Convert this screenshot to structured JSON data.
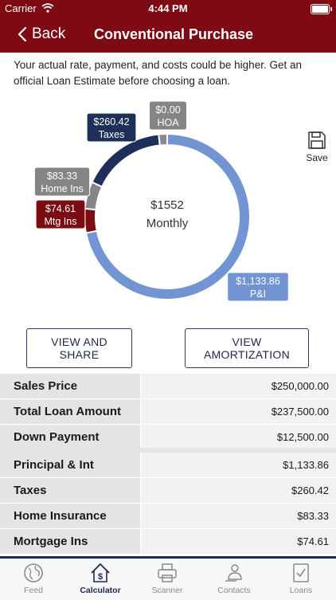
{
  "status_bar": {
    "carrier": "Carrier",
    "time": "4:44 PM"
  },
  "nav": {
    "back_label": "Back",
    "title": "Conventional Purchase"
  },
  "disclaimer": "Your actual rate, payment, and costs could be higher. Get an official Loan Estimate before choosing a loan.",
  "chart_data": {
    "type": "pie",
    "variant": "donut",
    "center_amount": "$1552",
    "center_label": "Monthly",
    "slices": [
      {
        "name": "P&I",
        "label_amount": "$1,133.86",
        "value": 1133.86,
        "color": "#7294d3"
      },
      {
        "name": "Mtg Ins",
        "label_amount": "$74.61",
        "value": 74.61,
        "color": "#7a0c12"
      },
      {
        "name": "Home Ins",
        "label_amount": "$83.33",
        "value": 83.33,
        "color": "#858585"
      },
      {
        "name": "Taxes",
        "label_amount": "$260.42",
        "value": 260.42,
        "color": "#1e2f5a"
      },
      {
        "name": "HOA",
        "label_amount": "$0.00",
        "value": 0.0,
        "color": "#8a8a8a"
      }
    ]
  },
  "save_label": "Save",
  "buttons": {
    "view_share": "VIEW AND SHARE",
    "view_amortization": "VIEW AMORTIZATION"
  },
  "summary_rows": [
    {
      "label": "Sales Price",
      "value": "$250,000.00"
    },
    {
      "label": "Total Loan Amount",
      "value": "$237,500.00"
    },
    {
      "label": "Down Payment",
      "value": "$12,500.00"
    }
  ],
  "payment_rows": [
    {
      "label": "Principal & Int",
      "value": "$1,133.86"
    },
    {
      "label": "Taxes",
      "value": "$260.42"
    },
    {
      "label": "Home Insurance",
      "value": "$83.33"
    },
    {
      "label": "Mortgage Ins",
      "value": "$74.61"
    }
  ],
  "tabs": [
    {
      "label": "Feed",
      "icon": "globe-icon"
    },
    {
      "label": "Calculator",
      "icon": "calculator-house-icon",
      "active": true
    },
    {
      "label": "Scanner",
      "icon": "scanner-icon"
    },
    {
      "label": "Contacts",
      "icon": "contacts-icon"
    },
    {
      "label": "Loans",
      "icon": "loans-icon"
    }
  ]
}
